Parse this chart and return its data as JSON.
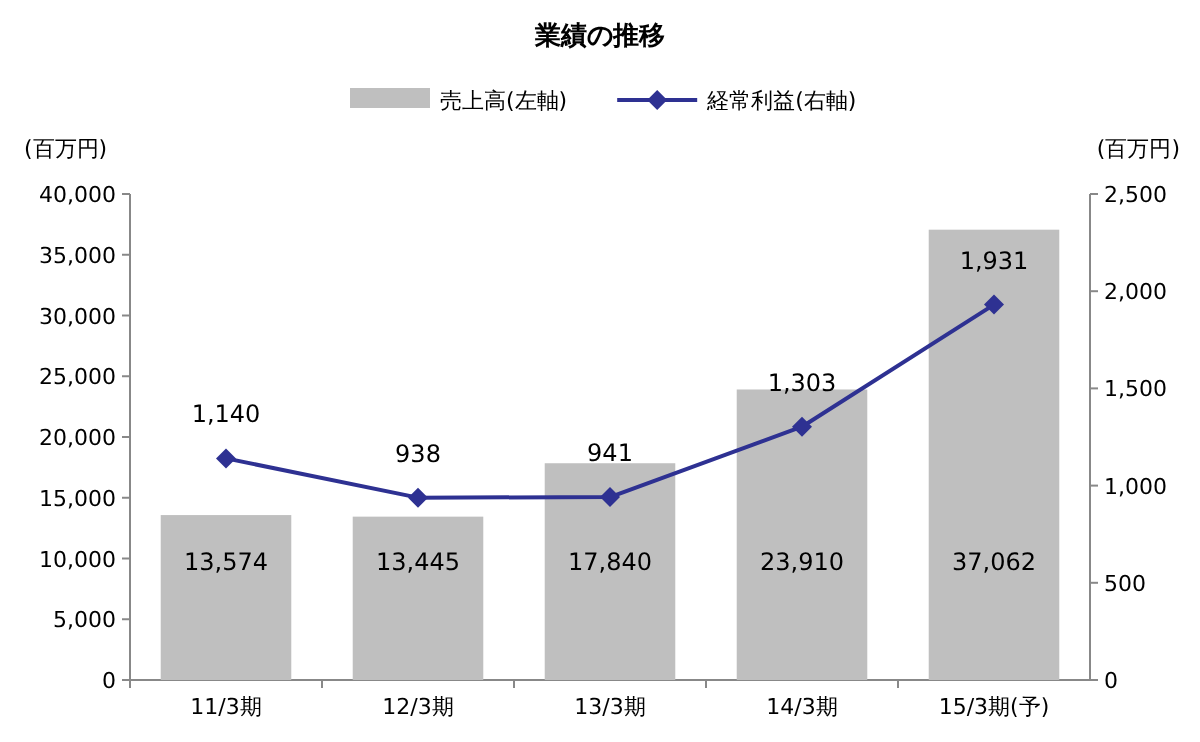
{
  "chart_data": {
    "type": "bar",
    "title": "業績の推移",
    "ylabel": "(百万円)",
    "y2label": "(百万円)",
    "categories": [
      "11/3期",
      "12/3期",
      "13/3期",
      "14/3期",
      "15/3期(予)"
    ],
    "series": [
      {
        "name": "売上高(左軸)",
        "color": "#bfbfbf",
        "values": [
          13574,
          13445,
          17840,
          23910,
          37062
        ],
        "value_labels": [
          "13,574",
          "13,445",
          "17,840",
          "23,910",
          "37,062"
        ]
      },
      {
        "name": "経常利益(右軸)",
        "type": "line",
        "axis": "y2",
        "color": "#2e3192",
        "marker": "diamond",
        "values": [
          1140,
          938,
          941,
          1303,
          1931
        ],
        "value_labels": [
          "1,140",
          "938",
          "941",
          "1,303",
          "1,931"
        ]
      }
    ],
    "ylim": [
      0,
      40000
    ],
    "yticks": [
      0,
      {
        "value": 5000,
        "label": "5,000"
      },
      {
        "value": 10000,
        "label": "10,000"
      },
      {
        "value": 15000,
        "label": "15,000"
      },
      {
        "value": 20000,
        "label": "20,000"
      },
      {
        "value": 25000,
        "label": "25,000"
      },
      {
        "value": 30000,
        "label": "30,000"
      },
      {
        "value": 35000,
        "label": "35,000"
      },
      {
        "value": 40000,
        "label": "40,000"
      }
    ],
    "y2lim": [
      0,
      2500
    ],
    "y2ticks": [
      0,
      500,
      {
        "value": 1000,
        "label": "1,000"
      },
      {
        "value": 1500,
        "label": "1,500"
      },
      {
        "value": 2000,
        "label": "2,000"
      },
      {
        "value": 2500,
        "label": "2,500"
      }
    ],
    "legend": "top",
    "grid": false
  }
}
